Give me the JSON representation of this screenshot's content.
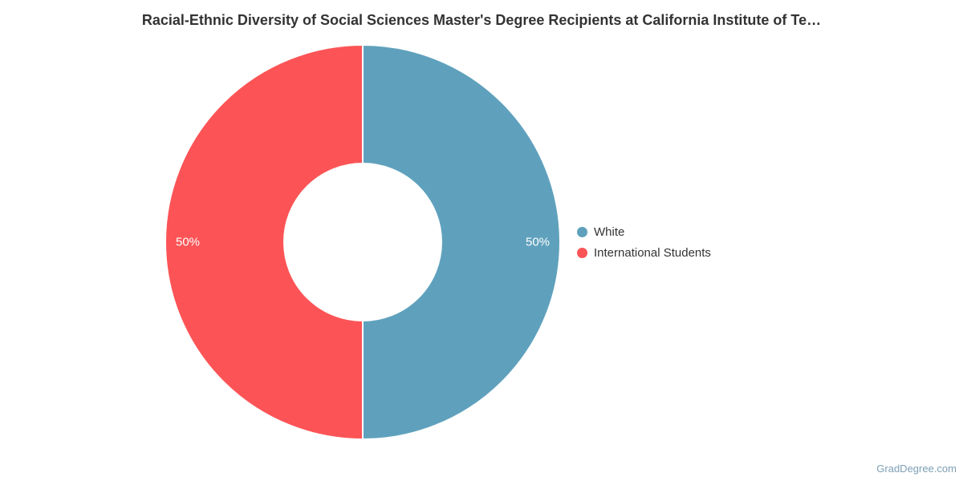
{
  "chart_data": {
    "type": "pie",
    "donut": true,
    "title": "Racial-Ethnic Diversity of Social Sciences Master's Degree Recipients at California Institute of Te…",
    "categories": [
      "White",
      "International Students"
    ],
    "values": [
      50,
      50
    ],
    "data_labels": [
      "50%",
      "50%"
    ],
    "slice_colors": [
      "#5fa1bd",
      "#fc5456"
    ],
    "legend_position": "right",
    "legend_entries": [
      "White",
      "International Students"
    ],
    "start_angle_deg": 0,
    "direction": "clockwise",
    "hole_ratio": 0.4,
    "grid": false
  },
  "watermark": {
    "text": "GradDegree.com",
    "color": "#7d9fb5"
  },
  "style": {
    "title_color": "#333333",
    "legend_text_color": "#333333",
    "data_label_color": "#ffffff",
    "background_color": "#ffffff",
    "slice_border_color": "#ffffff"
  }
}
